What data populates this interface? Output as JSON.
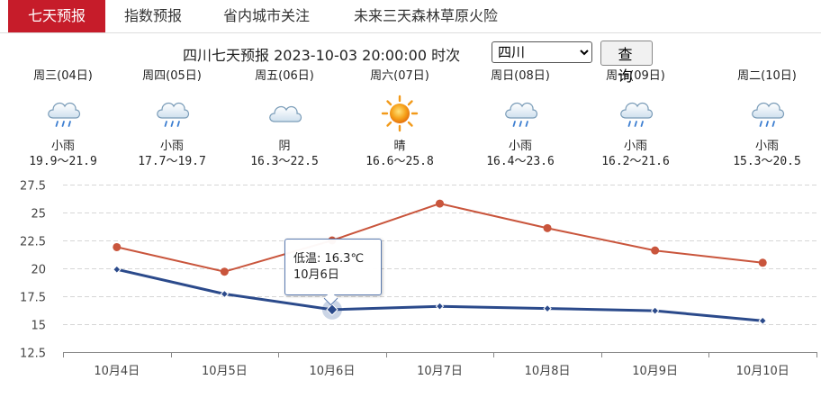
{
  "tabs": [
    {
      "label": "七天预报",
      "active": true
    },
    {
      "label": "指数预报",
      "active": false
    },
    {
      "label": "省内城市关注",
      "active": false
    },
    {
      "label": "未来三天森林草原火险",
      "active": false
    }
  ],
  "toolbar": {
    "title": "四川七天预报 2023-10-03 20:00:00 时次",
    "region_selected": "四川",
    "query_label": "查 询"
  },
  "days": [
    {
      "weekday": "周三(04日)",
      "icon": "light-rain-icon",
      "weather": "小雨",
      "range": "19.9～21.9"
    },
    {
      "weekday": "周四(05日)",
      "icon": "light-rain-icon",
      "weather": "小雨",
      "range": "17.7～19.7"
    },
    {
      "weekday": "周五(06日)",
      "icon": "overcast-icon",
      "weather": "阴",
      "range": "16.3～22.5"
    },
    {
      "weekday": "周六(07日)",
      "icon": "sunny-icon",
      "weather": "晴",
      "range": "16.6～25.8"
    },
    {
      "weekday": "周日(08日)",
      "icon": "light-rain-icon",
      "weather": "小雨",
      "range": "16.4～23.6"
    },
    {
      "weekday": "周一(09日)",
      "icon": "light-rain-icon",
      "weather": "小雨",
      "range": "16.2～21.6"
    },
    {
      "weekday": "周二(10日)",
      "icon": "light-rain-icon",
      "weather": "小雨",
      "range": "15.3～20.5"
    }
  ],
  "chart_data": {
    "type": "line",
    "categories": [
      "10月4日",
      "10月5日",
      "10月6日",
      "10月7日",
      "10月8日",
      "10月9日",
      "10月10日"
    ],
    "series": [
      {
        "key": "high",
        "values": [
          21.9,
          19.7,
          22.5,
          25.8,
          23.6,
          21.6,
          20.5
        ],
        "color": "#c9553c"
      },
      {
        "key": "low",
        "values": [
          19.9,
          17.7,
          16.3,
          16.6,
          16.4,
          16.2,
          15.3
        ],
        "color": "#2b4a8b"
      }
    ],
    "y_ticks": [
      "12.5",
      "15",
      "17.5",
      "20",
      "22.5",
      "25",
      "27.5"
    ],
    "ylim": [
      12.5,
      27.5
    ],
    "grid": "horizontal-dashed",
    "tooltip": {
      "line1": "低温: 16.3℃",
      "line2": "10月6日",
      "series": "low",
      "index": 2
    }
  },
  "colors": {
    "accent": "#c61c2a",
    "high_line": "#c9553c",
    "low_line": "#2b4a8b"
  }
}
